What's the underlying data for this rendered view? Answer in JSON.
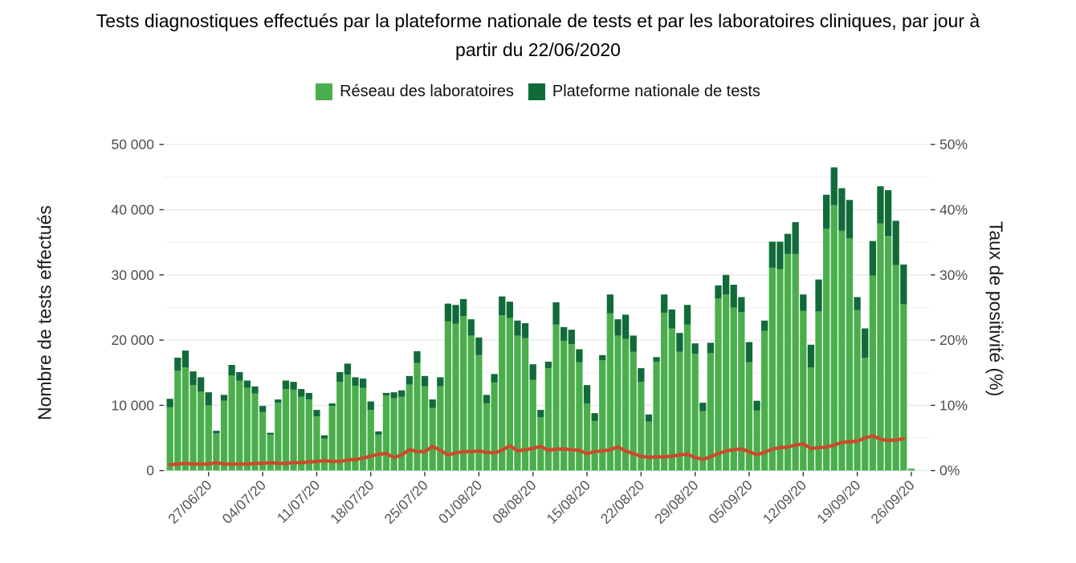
{
  "title": {
    "line1": "Tests diagnostiques effectués par la plateforme nationale de tests et par les laboratoires cliniques, par jour à",
    "line2": "partir du 22/06/2020"
  },
  "legend": [
    {
      "label": "Réseau des laboratoires",
      "color": "#4bae4c"
    },
    {
      "label": "Plateforme nationale de tests",
      "color": "#106b39"
    }
  ],
  "y_axis_left": {
    "title": "Nombre de tests effectués",
    "tick_labels": [
      "0",
      "10 000",
      "20 000",
      "30 000",
      "40 000",
      "50 000"
    ],
    "tick_values": [
      0,
      10000,
      20000,
      30000,
      40000,
      50000
    ]
  },
  "y_axis_right": {
    "title": "Taux de positivité (%)",
    "tick_labels": [
      "0%",
      "10%",
      "20%",
      "30%",
      "40%",
      "50%"
    ],
    "tick_values": [
      0,
      10,
      20,
      30,
      40,
      50
    ]
  },
  "x_axis": {
    "tick_labels": [
      "27/06/20",
      "04/07/20",
      "11/07/20",
      "18/07/20",
      "25/07/20",
      "01/08/20",
      "08/08/20",
      "15/08/20",
      "22/08/20",
      "29/08/20",
      "05/09/20",
      "12/09/20",
      "19/09/20",
      "26/09/20"
    ]
  },
  "chart_data": {
    "type": "bar",
    "stacked": true,
    "title": "Tests diagnostiques effectués par la plateforme nationale de tests et par les laboratoires cliniques, par jour à partir du 22/06/2020",
    "ylabel_left": "Nombre de tests effectués",
    "ylabel_right": "Taux de positivité (%)",
    "ylim": [
      0,
      50000
    ],
    "ylim_right": [
      0,
      50
    ],
    "grid": true,
    "legend_position": "top",
    "dates": [
      "22/06/20",
      "23/06/20",
      "24/06/20",
      "25/06/20",
      "26/06/20",
      "27/06/20",
      "28/06/20",
      "29/06/20",
      "30/06/20",
      "01/07/20",
      "02/07/20",
      "03/07/20",
      "04/07/20",
      "05/07/20",
      "06/07/20",
      "07/07/20",
      "08/07/20",
      "09/07/20",
      "10/07/20",
      "11/07/20",
      "12/07/20",
      "13/07/20",
      "14/07/20",
      "15/07/20",
      "16/07/20",
      "17/07/20",
      "18/07/20",
      "19/07/20",
      "20/07/20",
      "21/07/20",
      "22/07/20",
      "23/07/20",
      "24/07/20",
      "25/07/20",
      "26/07/20",
      "27/07/20",
      "28/07/20",
      "29/07/20",
      "30/07/20",
      "31/07/20",
      "01/08/20",
      "02/08/20",
      "03/08/20",
      "04/08/20",
      "05/08/20",
      "06/08/20",
      "07/08/20",
      "08/08/20",
      "09/08/20",
      "10/08/20",
      "11/08/20",
      "12/08/20",
      "13/08/20",
      "14/08/20",
      "15/08/20",
      "16/08/20",
      "17/08/20",
      "18/08/20",
      "19/08/20",
      "20/08/20",
      "21/08/20",
      "22/08/20",
      "23/08/20",
      "24/08/20",
      "25/08/20",
      "26/08/20",
      "27/08/20",
      "28/08/20",
      "29/08/20",
      "30/08/20",
      "31/08/20",
      "01/09/20",
      "02/09/20",
      "03/09/20",
      "04/09/20",
      "05/09/20",
      "06/09/20",
      "07/09/20",
      "08/09/20",
      "09/09/20",
      "10/09/20",
      "11/09/20",
      "12/09/20",
      "13/09/20",
      "14/09/20",
      "15/09/20",
      "16/09/20",
      "17/09/20",
      "18/09/20",
      "19/09/20",
      "20/09/20",
      "21/09/20",
      "22/09/20",
      "23/09/20",
      "24/09/20",
      "25/09/20",
      "26/09/20"
    ],
    "series": [
      {
        "name": "Réseau des laboratoires",
        "color": "#4bae4c",
        "values": [
          9700,
          15300,
          15800,
          13100,
          12100,
          10000,
          5700,
          10700,
          14600,
          13800,
          12700,
          11800,
          9000,
          5500,
          10400,
          12500,
          12400,
          11300,
          10900,
          8300,
          4900,
          9900,
          13600,
          14700,
          13000,
          12700,
          9300,
          5500,
          11500,
          11100,
          11300,
          13200,
          16500,
          12900,
          9600,
          12900,
          22900,
          22500,
          23700,
          20700,
          17700,
          10300,
          13500,
          23800,
          23400,
          20700,
          20300,
          13900,
          8200,
          15700,
          22400,
          19900,
          19400,
          16600,
          10300,
          7600,
          16900,
          24100,
          20700,
          20200,
          18200,
          13600,
          7500,
          16700,
          24200,
          21800,
          18200,
          22400,
          17900,
          9100,
          18000,
          26400,
          27000,
          25000,
          24300,
          16600,
          9200,
          21400,
          31100,
          30900,
          33200,
          33200,
          24500,
          15800,
          24400,
          37100,
          40700,
          36800,
          35600,
          24600,
          17300,
          29900,
          37900,
          36000,
          31500,
          25500,
          300
        ]
      },
      {
        "name": "Plateforme nationale de tests",
        "color": "#106b39",
        "values": [
          1300,
          2000,
          2600,
          2100,
          2200,
          2000,
          400,
          900,
          1600,
          1300,
          1100,
          1100,
          900,
          300,
          500,
          1300,
          1200,
          1200,
          1000,
          1000,
          500,
          400,
          1500,
          1700,
          1300,
          1400,
          1300,
          500,
          400,
          900,
          1000,
          1300,
          1800,
          1600,
          1300,
          1400,
          2700,
          2900,
          2600,
          2500,
          2700,
          1300,
          1300,
          2900,
          2500,
          2300,
          2300,
          2400,
          1100,
          1000,
          3400,
          2100,
          2200,
          2000,
          2800,
          1200,
          800,
          2900,
          2500,
          3700,
          2500,
          2100,
          1100,
          700,
          2800,
          2900,
          2900,
          3000,
          1600,
          1300,
          1600,
          2000,
          3000,
          3500,
          2300,
          3100,
          1500,
          1600,
          4000,
          4200,
          3100,
          4900,
          2500,
          3500,
          4900,
          5200,
          5800,
          6500,
          5900,
          2000,
          4500,
          5300,
          5700,
          7000,
          6800,
          6100,
          0
        ]
      }
    ],
    "line_series": {
      "name": "Taux de positivité",
      "color": "#cb4a2b",
      "axis": "right",
      "unit": "%",
      "values": [
        0.9,
        1.0,
        1.1,
        1.0,
        1.0,
        1.0,
        1.2,
        1.0,
        1.0,
        1.0,
        1.0,
        1.1,
        1.1,
        1.2,
        1.1,
        1.1,
        1.2,
        1.2,
        1.3,
        1.4,
        1.5,
        1.4,
        1.4,
        1.6,
        1.7,
        1.9,
        2.2,
        2.5,
        2.6,
        2.0,
        2.4,
        3.2,
        2.9,
        2.9,
        3.7,
        3.1,
        2.4,
        2.7,
        2.9,
        2.9,
        3.0,
        2.8,
        2.7,
        3.1,
        3.8,
        3.0,
        3.2,
        3.4,
        3.7,
        3.1,
        3.3,
        3.3,
        3.2,
        3.1,
        2.6,
        2.9,
        3.0,
        3.2,
        3.6,
        3.0,
        2.6,
        2.2,
        2.0,
        2.1,
        2.1,
        2.2,
        2.4,
        2.5,
        2.0,
        1.7,
        2.1,
        2.6,
        3.0,
        3.2,
        3.3,
        2.9,
        2.4,
        2.8,
        3.3,
        3.5,
        3.6,
        3.9,
        4.1,
        3.4,
        3.5,
        3.6,
        3.9,
        4.3,
        4.4,
        4.5,
        5.0,
        5.3,
        4.8,
        4.6,
        4.7,
        4.9,
        null
      ]
    }
  }
}
